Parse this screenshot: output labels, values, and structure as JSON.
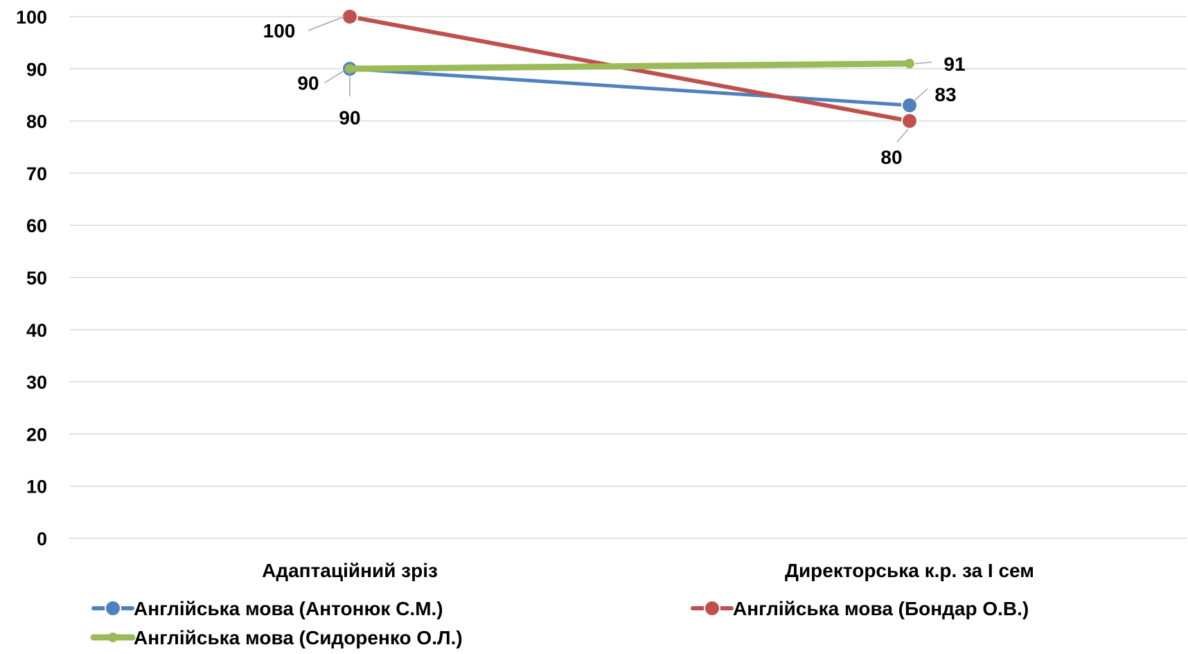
{
  "chart_data": {
    "type": "line",
    "title": "",
    "xlabel": "",
    "ylabel": "",
    "ylim": [
      0,
      100
    ],
    "yticks": [
      0,
      10,
      20,
      30,
      40,
      50,
      60,
      70,
      80,
      90,
      100
    ],
    "grid": true,
    "legend_position": "bottom",
    "categories": [
      "Адаптаційний зріз",
      "Директорська к.р. за І сем"
    ],
    "series": [
      {
        "name": "Англійська мова (Антонюк С.М.)",
        "values": [
          90,
          83
        ],
        "color": "#4F81BD"
      },
      {
        "name": "Англійська мова (Бондар О.В.)",
        "values": [
          100,
          80
        ],
        "color": "#C0504D"
      },
      {
        "name": "Англійська мова (Сидоренко О.Л.)",
        "values": [
          90,
          91
        ],
        "color": "#9BBB59"
      }
    ]
  }
}
